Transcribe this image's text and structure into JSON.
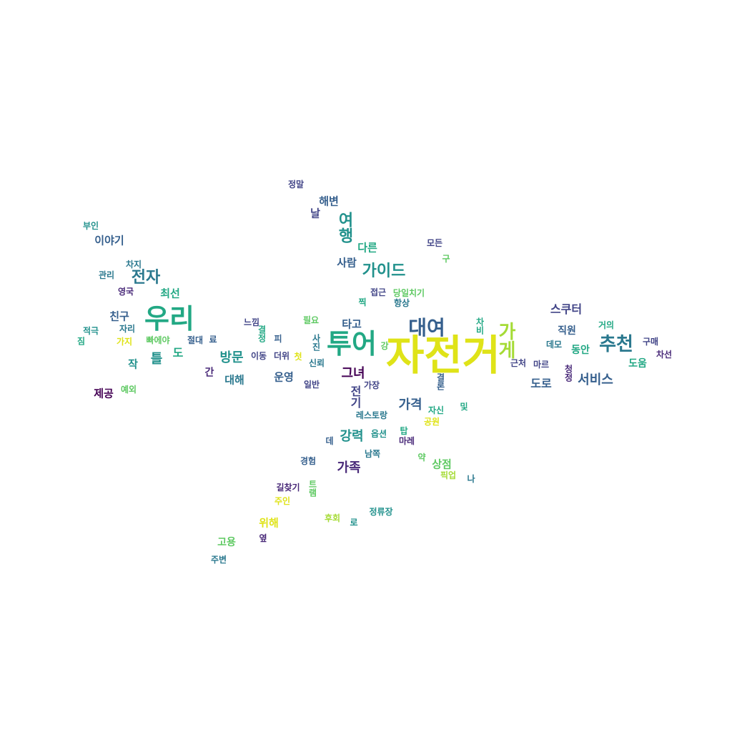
{
  "palette": {
    "yellow": "#dfe318",
    "lime": "#a5db36",
    "green": "#5ec962",
    "teal_green": "#22a884",
    "teal": "#21918c",
    "blue_teal": "#2a788e",
    "blue": "#355f8d",
    "indigo": "#414487",
    "purple": "#482878",
    "dark_purple": "#440154"
  },
  "words": [
    {
      "text": "자전거",
      "color": "yellow",
      "weight": 5
    },
    {
      "text": "투어",
      "color": "teal_green",
      "weight": 4
    },
    {
      "text": "우리",
      "color": "teal_green",
      "weight": 4
    },
    {
      "text": "대여",
      "color": "blue",
      "weight": 3
    },
    {
      "text": "가게",
      "color": "lime",
      "weight": 3,
      "vertical": true
    },
    {
      "text": "추천",
      "color": "blue_teal",
      "weight": 3
    },
    {
      "text": "가이드",
      "color": "teal",
      "weight": 2
    },
    {
      "text": "여행",
      "color": "teal",
      "weight": 2,
      "vertical": true
    },
    {
      "text": "전자",
      "color": "blue_teal",
      "weight": 2
    },
    {
      "text": "방문",
      "color": "teal",
      "weight": 2
    },
    {
      "text": "서비스",
      "color": "blue",
      "weight": 2
    },
    {
      "text": "가족",
      "color": "purple",
      "weight": 2
    },
    {
      "text": "강력",
      "color": "teal",
      "weight": 2
    },
    {
      "text": "가격",
      "color": "blue",
      "weight": 2
    },
    {
      "text": "그녀",
      "color": "dark_purple",
      "weight": 2
    },
    {
      "text": "스쿠터",
      "color": "indigo",
      "weight": 1
    },
    {
      "text": "직원",
      "color": "blue",
      "weight": 1
    },
    {
      "text": "동안",
      "color": "teal_green",
      "weight": 1
    },
    {
      "text": "도움",
      "color": "teal_green",
      "weight": 1
    },
    {
      "text": "도로",
      "color": "blue",
      "weight": 1
    },
    {
      "text": "상점",
      "color": "green",
      "weight": 1
    },
    {
      "text": "고용",
      "color": "green",
      "weight": 1
    },
    {
      "text": "위해",
      "color": "yellow",
      "weight": 1
    },
    {
      "text": "제공",
      "color": "dark_purple",
      "weight": 1
    },
    {
      "text": "친구",
      "color": "blue",
      "weight": 1
    },
    {
      "text": "틀",
      "color": "teal",
      "weight": 1
    },
    {
      "text": "도",
      "color": "teal_green",
      "weight": 1
    },
    {
      "text": "작",
      "color": "teal",
      "weight": 1
    },
    {
      "text": "대해",
      "color": "blue_teal",
      "weight": 1
    },
    {
      "text": "운영",
      "color": "blue",
      "weight": 1
    },
    {
      "text": "타고",
      "color": "blue",
      "weight": 1
    },
    {
      "text": "사람",
      "color": "blue",
      "weight": 1
    },
    {
      "text": "다른",
      "color": "teal_green",
      "weight": 1
    },
    {
      "text": "해변",
      "color": "blue",
      "weight": 1
    },
    {
      "text": "날",
      "color": "indigo",
      "weight": 1
    },
    {
      "text": "이야기",
      "color": "blue",
      "weight": 1
    },
    {
      "text": "최선",
      "color": "teal_green",
      "weight": 1
    },
    {
      "text": "전기",
      "color": "indigo",
      "weight": 1,
      "vertical": true
    },
    {
      "text": "간",
      "color": "purple",
      "weight": 1,
      "vertical": true
    },
    {
      "text": "정말",
      "color": "indigo",
      "weight": 0
    },
    {
      "text": "부인",
      "color": "teal",
      "weight": 0
    },
    {
      "text": "모든",
      "color": "indigo",
      "weight": 0
    },
    {
      "text": "구",
      "color": "green",
      "weight": 0
    },
    {
      "text": "차지",
      "color": "blue_teal",
      "weight": 0
    },
    {
      "text": "관리",
      "color": "blue_teal",
      "weight": 0
    },
    {
      "text": "영국",
      "color": "purple",
      "weight": 0
    },
    {
      "text": "접근",
      "color": "indigo",
      "weight": 0
    },
    {
      "text": "당일치기",
      "color": "green",
      "weight": 0
    },
    {
      "text": "찍",
      "color": "teal_green",
      "weight": 0
    },
    {
      "text": "항상",
      "color": "blue_teal",
      "weight": 0
    },
    {
      "text": "느낌",
      "color": "indigo",
      "weight": 0
    },
    {
      "text": "필요",
      "color": "green",
      "weight": 0
    },
    {
      "text": "차비",
      "color": "teal_green",
      "weight": 0,
      "vertical": true
    },
    {
      "text": "거의",
      "color": "teal_green",
      "weight": 0
    },
    {
      "text": "적극",
      "color": "teal",
      "weight": 0
    },
    {
      "text": "자리",
      "color": "blue_teal",
      "weight": 0
    },
    {
      "text": "짐",
      "color": "teal_green",
      "weight": 0,
      "vertical": true
    },
    {
      "text": "가지",
      "color": "yellow",
      "weight": 0
    },
    {
      "text": "빠에야",
      "color": "green",
      "weight": 0
    },
    {
      "text": "절대",
      "color": "blue",
      "weight": 0
    },
    {
      "text": "료",
      "color": "blue",
      "weight": 0
    },
    {
      "text": "결정",
      "color": "teal_green",
      "weight": 0,
      "vertical": true
    },
    {
      "text": "피",
      "color": "blue",
      "weight": 0
    },
    {
      "text": "사진",
      "color": "blue_teal",
      "weight": 0,
      "vertical": true
    },
    {
      "text": "강",
      "color": "green",
      "weight": 0
    },
    {
      "text": "구매",
      "color": "indigo",
      "weight": 0
    },
    {
      "text": "데모",
      "color": "blue_teal",
      "weight": 0
    },
    {
      "text": "마르",
      "color": "indigo",
      "weight": 0
    },
    {
      "text": "차선",
      "color": "purple",
      "weight": 0
    },
    {
      "text": "이동",
      "color": "indigo",
      "weight": 0
    },
    {
      "text": "더위",
      "color": "indigo",
      "weight": 0
    },
    {
      "text": "첫",
      "color": "yellow",
      "weight": 0
    },
    {
      "text": "근처",
      "color": "indigo",
      "weight": 0
    },
    {
      "text": "청정",
      "color": "purple",
      "weight": 0,
      "vertical": true
    },
    {
      "text": "신뢰",
      "color": "blue_teal",
      "weight": 0
    },
    {
      "text": "예외",
      "color": "green",
      "weight": 0
    },
    {
      "text": "일반",
      "color": "indigo",
      "weight": 0
    },
    {
      "text": "가장",
      "color": "indigo",
      "weight": 0
    },
    {
      "text": "결론",
      "color": "blue",
      "weight": 0,
      "vertical": true
    },
    {
      "text": "레스토랑",
      "color": "blue_teal",
      "weight": 0
    },
    {
      "text": "자신",
      "color": "teal_green",
      "weight": 0
    },
    {
      "text": "및",
      "color": "teal_green",
      "weight": 0
    },
    {
      "text": "공원",
      "color": "yellow",
      "weight": 0
    },
    {
      "text": "탑",
      "color": "teal_green",
      "weight": 0
    },
    {
      "text": "데",
      "color": "blue",
      "weight": 0
    },
    {
      "text": "옵션",
      "color": "teal",
      "weight": 0
    },
    {
      "text": "마레",
      "color": "purple",
      "weight": 0
    },
    {
      "text": "경험",
      "color": "blue",
      "weight": 0
    },
    {
      "text": "남쪽",
      "color": "blue_teal",
      "weight": 0
    },
    {
      "text": "약",
      "color": "green",
      "weight": 0
    },
    {
      "text": "픽업",
      "color": "lime",
      "weight": 0
    },
    {
      "text": "나",
      "color": "blue_teal",
      "weight": 0
    },
    {
      "text": "길찾기",
      "color": "purple",
      "weight": 0
    },
    {
      "text": "트램",
      "color": "green",
      "weight": 0,
      "vertical": true
    },
    {
      "text": "주인",
      "color": "yellow",
      "weight": 0
    },
    {
      "text": "후회",
      "color": "lime",
      "weight": 0
    },
    {
      "text": "로",
      "color": "teal",
      "weight": 0
    },
    {
      "text": "정류장",
      "color": "teal",
      "weight": 0
    },
    {
      "text": "옆",
      "color": "purple",
      "weight": 0
    },
    {
      "text": "주변",
      "color": "blue_teal",
      "weight": 0
    }
  ]
}
